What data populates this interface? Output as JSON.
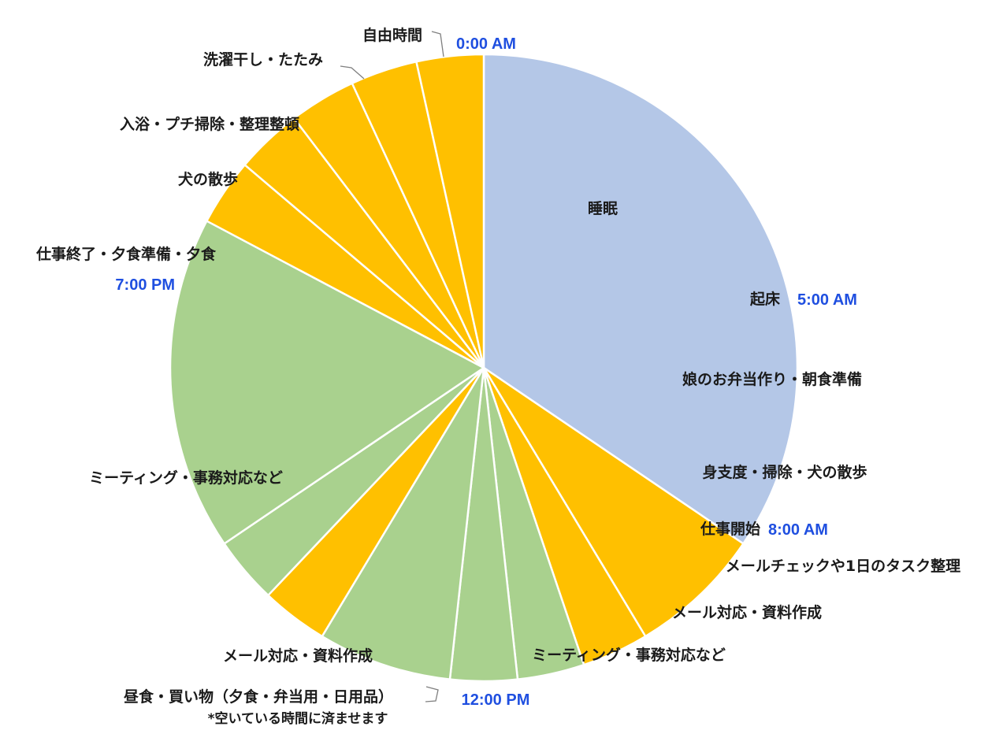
{
  "chart_data": {
    "type": "pie",
    "start": "top",
    "direction": "clockwise",
    "slices": [
      {
        "label": "睡眠",
        "hours": 5,
        "color": "#B4C7E7"
      },
      {
        "label": "娘のお弁当作り・朝食準備",
        "hours": 1,
        "color": "#FFC000"
      },
      {
        "label": "身支度・掃除・犬の散歩",
        "hours": 0.5,
        "color": "#FFC000"
      },
      {
        "label": "メールチェックや1日のタスク整理",
        "hours": 0.5,
        "color": "#A9D18E"
      },
      {
        "label": "メール対応・資料作成",
        "hours": 0.5,
        "color": "#A9D18E"
      },
      {
        "label": "ミーティング・事務対応など",
        "hours": 1,
        "color": "#A9D18E"
      },
      {
        "label": "昼食・買い物（夕食・弁当用・日用品）",
        "hours": 0.5,
        "color": "#FFC000"
      },
      {
        "label": "メール対応・資料作成",
        "hours": 0.5,
        "color": "#A9D18E"
      },
      {
        "label": "ミーティング・事務対応など",
        "hours": 2.5,
        "color": "#A9D18E"
      },
      {
        "label": "仕事終了・夕食準備・夕食",
        "hours": 0.5,
        "color": "#FFC000"
      },
      {
        "label": "犬の散歩",
        "hours": 0.5,
        "color": "#FFC000"
      },
      {
        "label": "入浴・プチ掃除・整理整頓",
        "hours": 0.5,
        "color": "#FFC000"
      },
      {
        "label": "洗濯干し・たたみ",
        "hours": 0.5,
        "color": "#FFC000"
      },
      {
        "label": "自由時間",
        "hours": 0.5,
        "color": "#FFC000"
      }
    ],
    "time_markers": [
      "0:00 AM",
      "5:00 AM",
      "8:00 AM",
      "12:00 PM",
      "7:00 PM"
    ],
    "annotations": {
      "wake": "起床",
      "work_start": "仕事開始"
    },
    "footnote": "*空いている時間に済ませます",
    "marker_color": "#1F4FE0"
  }
}
